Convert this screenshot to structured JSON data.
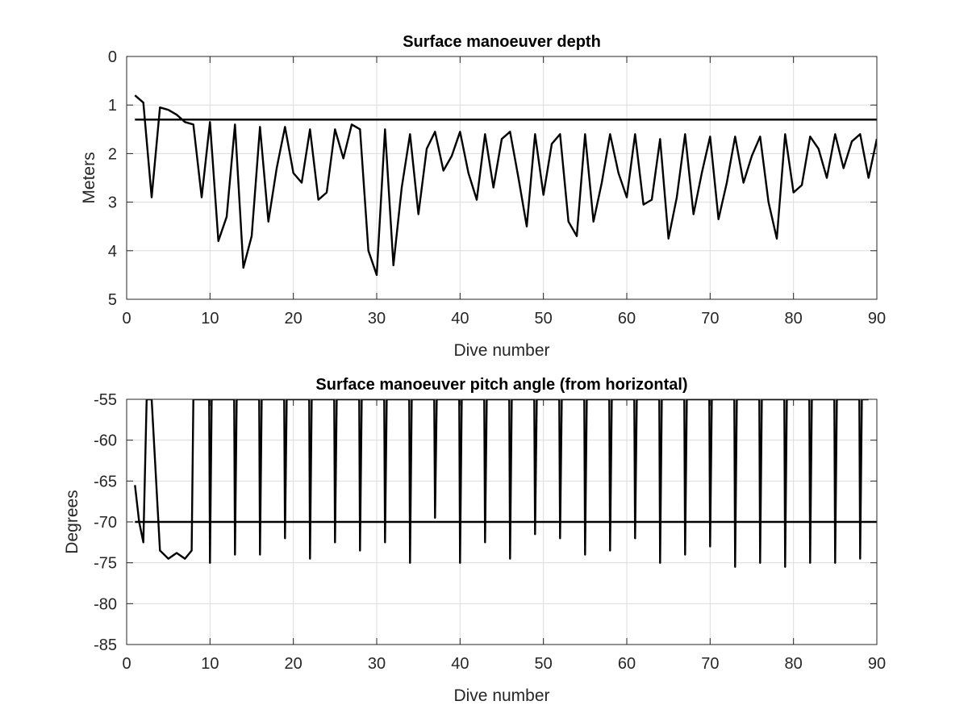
{
  "chart_data": [
    {
      "type": "line",
      "title": "Surface manoeuver depth",
      "xlabel": "Dive number",
      "ylabel": "Meters",
      "xlim": [
        0,
        90
      ],
      "ylim": [
        0,
        5
      ],
      "y_reversed": true,
      "grid": true,
      "xticks": [
        "0",
        "10",
        "20",
        "30",
        "40",
        "50",
        "60",
        "70",
        "80",
        "90"
      ],
      "yticks": [
        "0",
        "1",
        "2",
        "3",
        "4",
        "5"
      ],
      "series": [
        {
          "color": "#000000",
          "x": [
            1,
            2,
            3,
            4,
            5,
            6,
            7,
            8,
            9,
            10,
            11,
            12,
            13,
            14,
            15,
            16,
            17,
            18,
            19,
            20,
            21,
            22,
            23,
            24,
            25,
            26,
            27,
            28,
            29,
            30,
            31,
            32,
            33,
            34,
            35,
            36,
            37,
            38,
            39,
            40,
            41,
            42,
            43,
            44,
            45,
            46,
            47,
            48,
            49,
            50,
            51,
            52,
            53,
            54,
            55,
            56,
            57,
            58,
            59,
            60,
            61,
            62,
            63,
            64,
            65,
            66,
            67,
            68,
            69,
            70,
            71,
            72,
            73,
            74,
            75,
            76,
            77,
            78,
            79,
            80,
            81,
            82,
            83,
            84,
            85,
            86,
            87,
            88,
            89,
            90
          ],
          "y": [
            0.8,
            0.95,
            2.9,
            1.05,
            1.1,
            1.2,
            1.35,
            1.4,
            2.9,
            1.35,
            3.8,
            3.3,
            1.4,
            4.35,
            3.7,
            1.45,
            3.4,
            2.3,
            1.45,
            2.4,
            2.6,
            1.5,
            2.95,
            2.8,
            1.5,
            2.1,
            1.4,
            1.5,
            4.0,
            4.5,
            1.5,
            4.3,
            2.7,
            1.6,
            3.25,
            1.9,
            1.55,
            2.35,
            2.05,
            1.55,
            2.4,
            2.95,
            1.6,
            2.7,
            1.7,
            1.55,
            2.5,
            3.5,
            1.6,
            2.85,
            1.8,
            1.6,
            3.4,
            3.7,
            1.6,
            3.4,
            2.6,
            1.6,
            2.4,
            2.9,
            1.6,
            3.05,
            2.95,
            1.7,
            3.75,
            2.9,
            1.6,
            3.25,
            2.4,
            1.65,
            3.35,
            2.6,
            1.65,
            2.6,
            2.05,
            1.65,
            3.0,
            3.75,
            1.6,
            2.8,
            2.65,
            1.65,
            1.9,
            2.5,
            1.6,
            2.3,
            1.75,
            1.6,
            2.5,
            1.7
          ]
        },
        {
          "color": "#00dd00",
          "x": [
            1,
            90
          ],
          "y": [
            1.3,
            1.3
          ]
        }
      ]
    },
    {
      "type": "line",
      "title": "Surface manoeuver pitch angle (from horizontal)",
      "xlabel": "Dive number",
      "ylabel": "Degrees",
      "xlim": [
        0,
        90
      ],
      "ylim": [
        -85,
        -55
      ],
      "grid": true,
      "xticks": [
        "0",
        "10",
        "20",
        "30",
        "40",
        "50",
        "60",
        "70",
        "80",
        "90"
      ],
      "yticks": [
        "-55",
        "-60",
        "-65",
        "-70",
        "-75",
        "-80",
        "-85"
      ],
      "series": [
        {
          "color": "#000000",
          "x": [
            1,
            1.5,
            2,
            2.4,
            3,
            4,
            4.5,
            5,
            6,
            7,
            7.8,
            8,
            9.9,
            10,
            10.2,
            12.9,
            13,
            13.2,
            15.9,
            16,
            16.2,
            18.9,
            19,
            19.2,
            21.9,
            22,
            22.2,
            24.9,
            25,
            25.2,
            27.9,
            28,
            28.2,
            30.9,
            31,
            31.2,
            33.9,
            34,
            34.2,
            36.9,
            37,
            37.2,
            39.9,
            40,
            40.2,
            42.9,
            43,
            43.2,
            45.9,
            46,
            46.2,
            48.9,
            49,
            49.2,
            51.9,
            52,
            52.2,
            54.9,
            55,
            55.2,
            57.9,
            58,
            58.2,
            60.9,
            61,
            61.2,
            63.9,
            64,
            64.2,
            66.9,
            67,
            67.2,
            69.9,
            70,
            70.2,
            72.9,
            73,
            73.2,
            75.9,
            76,
            76.2,
            78.9,
            79,
            79.2,
            81.9,
            82,
            82.2,
            84.9,
            85,
            85.2,
            87.9,
            88,
            88.2,
            89
          ],
          "y": [
            -65.5,
            -70,
            -72.5,
            -55,
            -55,
            -73.5,
            -74,
            -74.5,
            -73.8,
            -74.5,
            -73.5,
            -55,
            -55,
            -75,
            -55,
            -55,
            -74,
            -55,
            -55,
            -74,
            -55,
            -55,
            -72,
            -55,
            -55,
            -74.5,
            -55,
            -55,
            -72.5,
            -55,
            -55,
            -73.5,
            -55,
            -55,
            -72.5,
            -55,
            -55,
            -75,
            -55,
            -55,
            -69.5,
            -55,
            -55,
            -75,
            -55,
            -55,
            -72.5,
            -55,
            -55,
            -74.5,
            -55,
            -55,
            -71.5,
            -55,
            -55,
            -72,
            -55,
            -55,
            -74,
            -55,
            -55,
            -73.5,
            -55,
            -55,
            -72,
            -55,
            -55,
            -75,
            -55,
            -55,
            -74,
            -55,
            -55,
            -73,
            -55,
            -55,
            -75.5,
            -55,
            -55,
            -75,
            -55,
            -55,
            -75.5,
            -55,
            -55,
            -75,
            -55,
            -55,
            -75,
            -55,
            -55,
            -74.5,
            -55,
            -55
          ]
        },
        {
          "color": "#00dd00",
          "x": [
            1,
            90
          ],
          "y": [
            -70,
            -70
          ]
        }
      ]
    }
  ]
}
